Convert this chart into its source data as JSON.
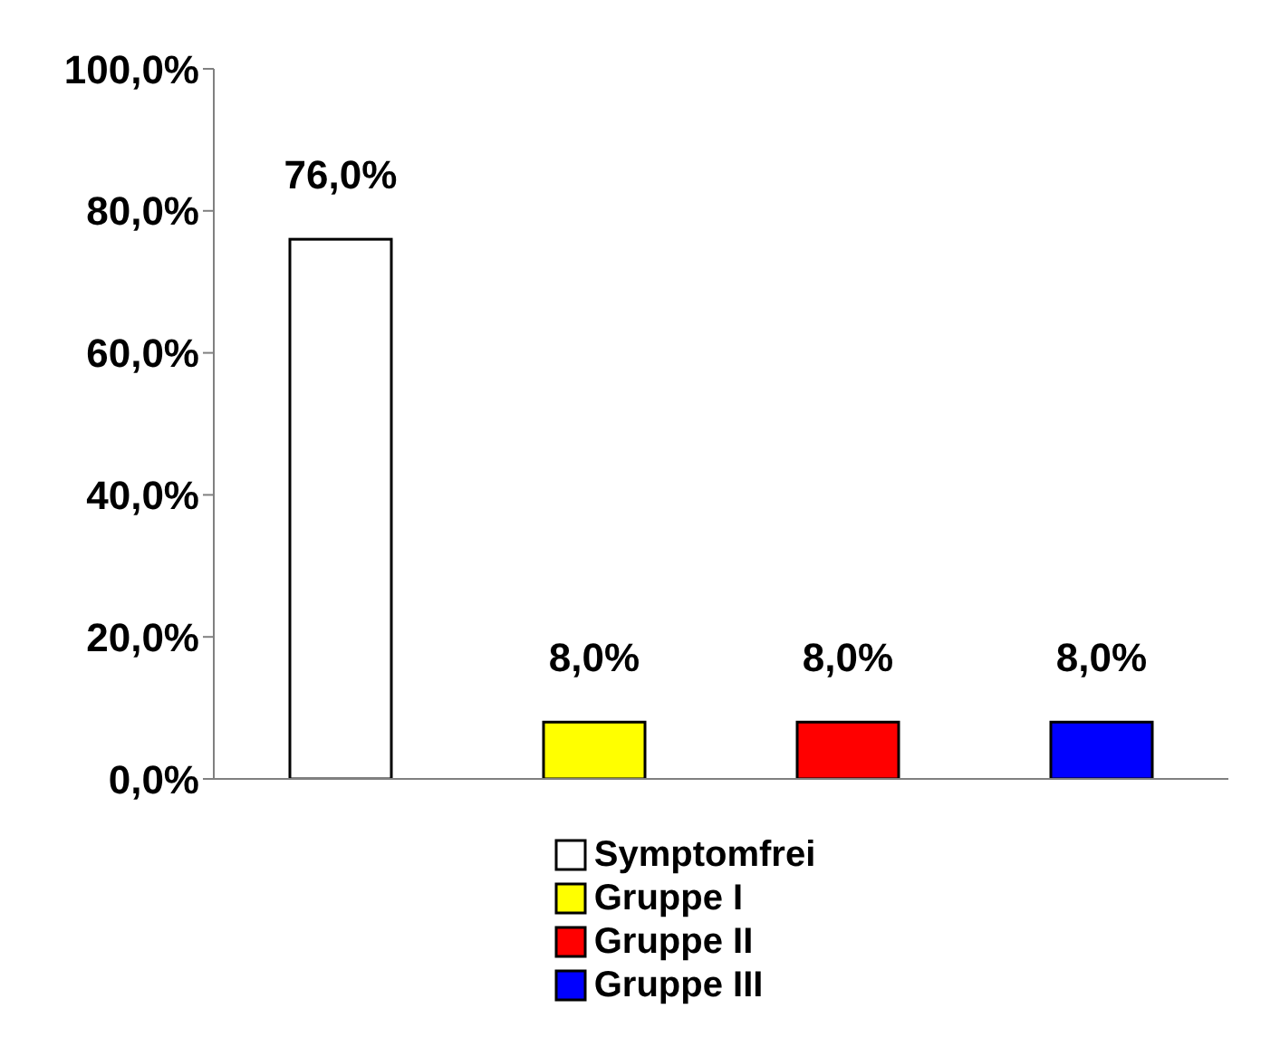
{
  "chart_data": {
    "type": "bar",
    "categories": [
      null,
      null,
      null,
      null
    ],
    "stacked": true,
    "series": [
      {
        "name": "Symptomfrei",
        "color": "#ffffff",
        "values": [
          76,
          null,
          null,
          null
        ],
        "value_labels": [
          "76,0%",
          null,
          null,
          null
        ]
      },
      {
        "name": "Gruppe I",
        "color": "#ffff00",
        "values": [
          null,
          8,
          null,
          null
        ],
        "value_labels": [
          null,
          "8,0%",
          null,
          null
        ]
      },
      {
        "name": "Gruppe II",
        "color": "#ff0000",
        "values": [
          null,
          null,
          8,
          null
        ],
        "value_labels": [
          null,
          null,
          "8,0%",
          null
        ]
      },
      {
        "name": "Gruppe III",
        "color": "#0000ff",
        "values": [
          null,
          null,
          null,
          8
        ],
        "value_labels": [
          null,
          null,
          null,
          "8,0%"
        ]
      }
    ],
    "ylim": [
      0,
      100
    ],
    "yticks": [
      {
        "value": 0,
        "label": "0,0%"
      },
      {
        "value": 20,
        "label": "20,0%"
      },
      {
        "value": 40,
        "label": "40,0%"
      },
      {
        "value": 60,
        "label": "60,0%"
      },
      {
        "value": 80,
        "label": "80,0%"
      },
      {
        "value": 100,
        "label": "100,0%"
      }
    ],
    "legend": "bottom",
    "grid": false
  }
}
